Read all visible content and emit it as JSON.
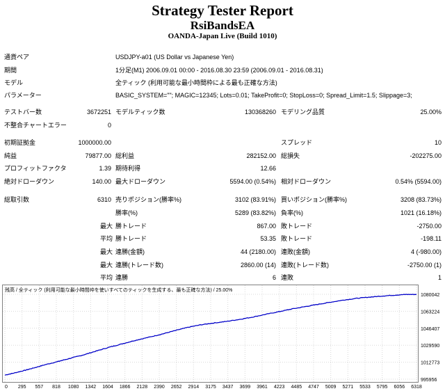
{
  "header": {
    "title": "Strategy Tester Report",
    "ea_name": "RsiBandsEA",
    "server": "OANDA-Japan Live (Build 1010)"
  },
  "info": {
    "symbol_label": "通貨ペア",
    "symbol_value": "USDJPY-a01 (US Dollar vs Japanese Yen)",
    "period_label": "期間",
    "period_value": "1分足(M1) 2006.09.01 00:00 - 2016.08.30 23:59 (2006.09.01 - 2016.08.31)",
    "model_label": "モデル",
    "model_value": "全ティック (利用可能な最小時間枠による最も正確な方法)",
    "params_label": "パラメーター",
    "params_value": "BASIC_SYSTEM=\"\"; MAGIC=12345; Lots=0.01; TakeProfit=0; StopLoss=0; Spread_Limit=1.5; Slippage=3;"
  },
  "stats": {
    "bars_label": "テストバー数",
    "bars_value": "3672251",
    "ticks_label": "モデルティック数",
    "ticks_value": "130368260",
    "quality_label": "モデリング品質",
    "quality_value": "25.00%",
    "mismatch_label": "不整合チャートエラー",
    "mismatch_value": "0",
    "deposit_label": "初期証拠金",
    "deposit_value": "1000000.00",
    "spread_label": "スプレッド",
    "spread_value": "10",
    "net_label": "純益",
    "net_value": "79877.00",
    "gross_profit_label": "総利益",
    "gross_profit_value": "282152.00",
    "gross_loss_label": "総損失",
    "gross_loss_value": "-202275.00",
    "pf_label": "プロフィットファクタ",
    "pf_value": "1.39",
    "payoff_label": "期待利得",
    "payoff_value": "12.66",
    "abs_dd_label": "絶対ドローダウン",
    "abs_dd_value": "140.00",
    "max_dd_label": "最大ドローダウン",
    "max_dd_value": "5594.00 (0.54%)",
    "rel_dd_label": "相対ドローダウン",
    "rel_dd_value": "0.54% (5594.00)",
    "trades_label": "総取引数",
    "trades_value": "6310",
    "short_label": "売りポジション(勝率%)",
    "short_value": "3102 (83.91%)",
    "long_label": "買いポジション(勝率%)",
    "long_value": "3208 (83.73%)",
    "win_label": "勝率(%)",
    "win_value": "5289 (83.82%)",
    "loss_label": "負率(%)",
    "loss_value": "1021 (16.18%)",
    "largest": "最大",
    "average": "平均",
    "largest_win_label": "勝トレード",
    "largest_win_value": "867.00",
    "largest_loss_label": "敗トレード",
    "largest_loss_value": "-2750.00",
    "avg_win_label": "勝トレード",
    "avg_win_value": "53.35",
    "avg_loss_label": "敗トレード",
    "avg_loss_value": "-198.11",
    "max_consec_win_label": "連勝(金額)",
    "max_consec_win_value": "44 (2180.00)",
    "max_consec_loss_label": "連敗(金額)",
    "max_consec_loss_value": "4 (-980.00)",
    "max_consec_profit_label": "連勝(トレード数)",
    "max_consec_profit_value": "2860.00 (14)",
    "max_consec_lossamt_label": "連敗(トレード数)",
    "max_consec_lossamt_value": "-2750.00 (1)",
    "avg_consec_win_label": "連勝",
    "avg_consec_win_value": "6",
    "avg_consec_loss_label": "連敗",
    "avg_consec_loss_value": "1"
  },
  "chart_data": {
    "type": "line",
    "caption": "残高 / 全ティック (利用可能な最小時間枠を使いすべてのティックを生成する、最も正確な方法) / 25.00%",
    "x_ticks": [
      "0",
      "295",
      "557",
      "818",
      "1080",
      "1342",
      "1604",
      "1866",
      "2128",
      "2390",
      "2652",
      "2914",
      "3175",
      "3437",
      "3699",
      "3961",
      "4223",
      "4485",
      "4747",
      "5009",
      "5271",
      "5533",
      "5795",
      "6056",
      "6318"
    ],
    "y_ticks": [
      "1080042",
      "1063224",
      "1046407",
      "1029590",
      "1012773",
      "995956"
    ],
    "xlim": [
      0,
      6310
    ],
    "ylim": [
      995956,
      1080042
    ],
    "series": [
      {
        "color": "#0000c8",
        "x": [
          0,
          150,
          300,
          450,
          600,
          800,
          1000,
          1200,
          1400,
          1600,
          1800,
          2000,
          2200,
          2400,
          2600,
          2800,
          3000,
          3200,
          3400,
          3600,
          3800,
          4000,
          4200,
          4400,
          4600,
          4800,
          5000,
          5200,
          5400,
          5600,
          5800,
          6000,
          6150,
          6310
        ],
        "y": [
          1000000,
          1002200,
          1004600,
          1007200,
          1010000,
          1013200,
          1016600,
          1019900,
          1023800,
          1027600,
          1031000,
          1034400,
          1037400,
          1040500,
          1043900,
          1047200,
          1049800,
          1051600,
          1053200,
          1055200,
          1057500,
          1060200,
          1062800,
          1065500,
          1067800,
          1070100,
          1072300,
          1074400,
          1076100,
          1077300,
          1078400,
          1079300,
          1079900,
          1079877
        ]
      }
    ]
  }
}
